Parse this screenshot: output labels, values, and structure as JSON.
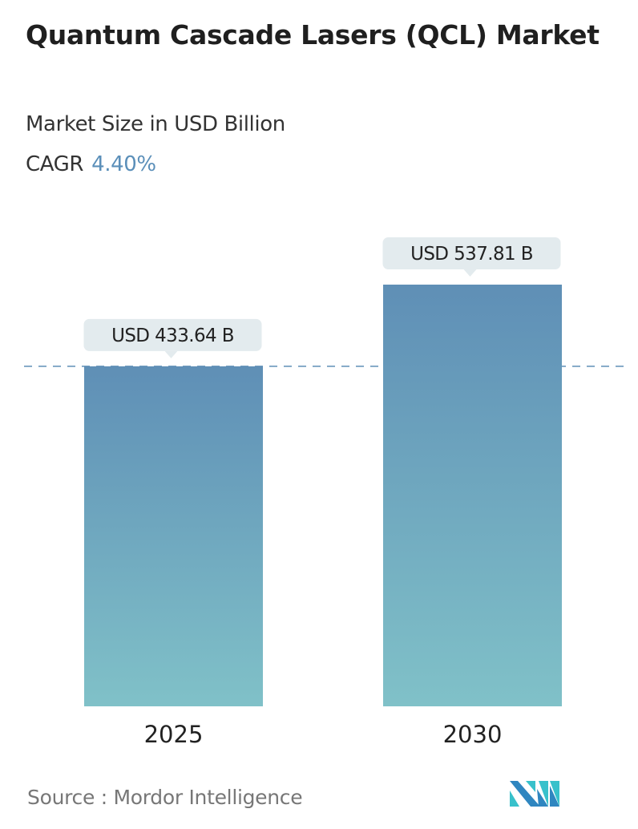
{
  "title": "Quantum Cascade Lasers (QCL) Market",
  "subtitle": "Market Size in USD Billion",
  "cagr_label": "CAGR",
  "cagr_value": "4.40%",
  "source": "Source :  Mordor Intelligence",
  "logo_text": "Mordor Intelligence",
  "colors": {
    "bar_top": "#5f8fb6",
    "bar_bottom": "#80c1c8",
    "cagr": "#5b8fb9",
    "label_bg": "#e3ebee",
    "reference_line": "#5f8fb6"
  },
  "chart_data": {
    "type": "bar",
    "categories": [
      "2025",
      "2030"
    ],
    "values": [
      433.64,
      537.81
    ],
    "data_labels": [
      "USD 433.64 B",
      "USD 537.81 B"
    ],
    "ylim": [
      0,
      537.81
    ],
    "reference_line": "dashed at 2025 value",
    "grid": false,
    "legend": "none"
  }
}
